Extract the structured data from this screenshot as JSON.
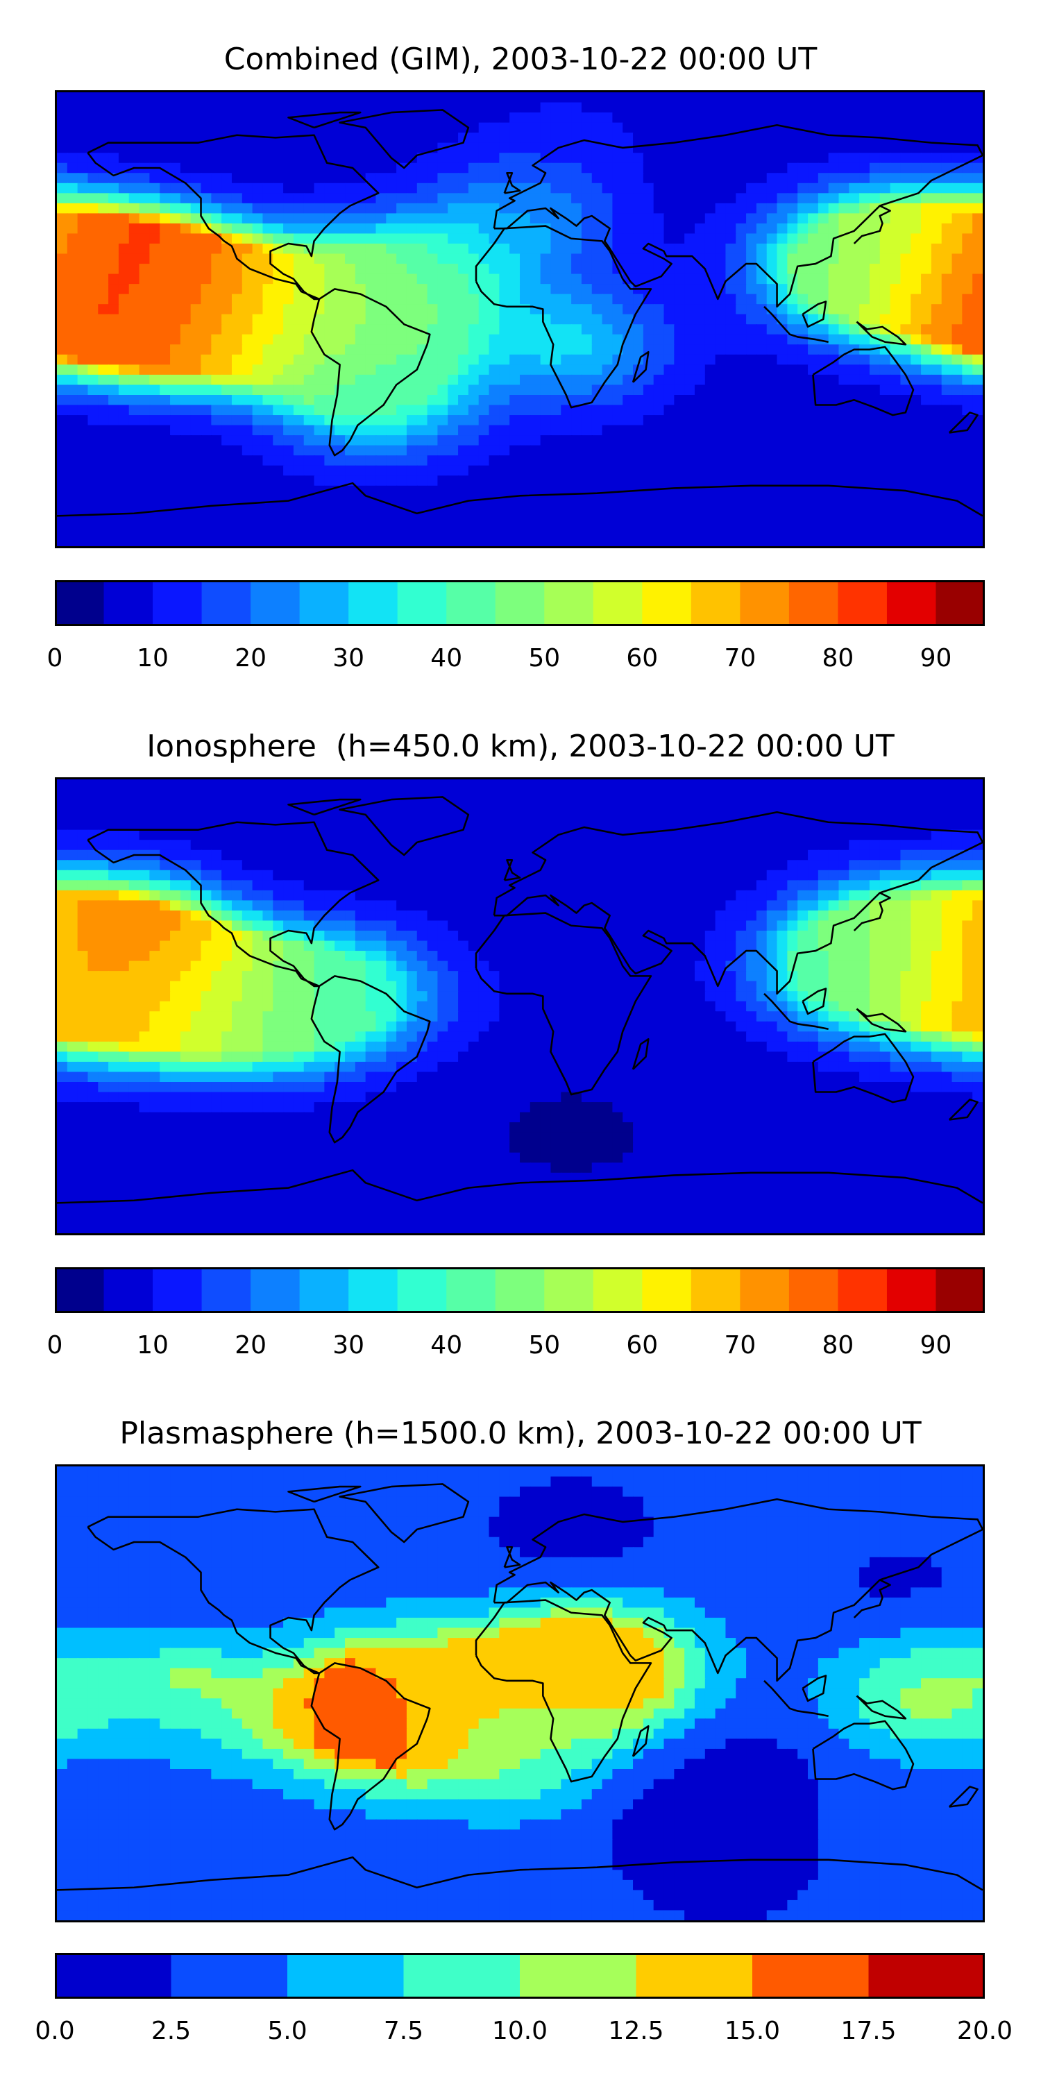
{
  "chart_data": [
    {
      "type": "heatmap",
      "title": "Combined (GIM), 2003-10-22 00:00 UT",
      "colorbar": {
        "levels": [
          0,
          5,
          10,
          15,
          20,
          25,
          30,
          35,
          40,
          45,
          50,
          55,
          60,
          65,
          70,
          75,
          80,
          85,
          90,
          95
        ],
        "ticks": [
          "0",
          "10",
          "20",
          "30",
          "40",
          "50",
          "60",
          "70",
          "80",
          "90"
        ],
        "colors": [
          "#00008d",
          "#0000d6",
          "#0a17ff",
          "#0f4dff",
          "#0d80ff",
          "#0ab1ff",
          "#12e3f5",
          "#32ffd1",
          "#56ffa7",
          "#7dff7d",
          "#a7ff56",
          "#d1ff2c",
          "#fff200",
          "#ffc200",
          "#ff9200",
          "#ff6600",
          "#ff3300",
          "#e30000",
          "#990000"
        ]
      },
      "features": [
        {
          "lon": -165,
          "lat": 15,
          "value": 88
        },
        {
          "lon": -140,
          "lat": 7,
          "value": 82
        },
        {
          "lon": -155,
          "lat": 10,
          "value": 80
        },
        {
          "lon": -120,
          "lat": 5,
          "value": 72
        },
        {
          "lon": -95,
          "lat": 0,
          "value": 58
        },
        {
          "lon": -65,
          "lat": -5,
          "value": 50
        },
        {
          "lon": -45,
          "lat": 15,
          "value": 45
        },
        {
          "lon": -55,
          "lat": -30,
          "value": 38
        },
        {
          "lon": 175,
          "lat": 15,
          "value": 78
        },
        {
          "lon": 150,
          "lat": 25,
          "value": 55
        },
        {
          "lon": 130,
          "lat": 20,
          "value": 42
        },
        {
          "lon": 20,
          "lat": -10,
          "value": 30
        },
        {
          "lon": 0,
          "lat": 40,
          "value": 25
        },
        {
          "lon": 20,
          "lat": 75,
          "value": 10
        },
        {
          "lon": 30,
          "lat": -75,
          "value": 8
        }
      ]
    },
    {
      "type": "heatmap",
      "title": "Ionosphere  (h=450.0 km), 2003-10-22 00:00 UT",
      "colorbar": {
        "levels": [
          0,
          5,
          10,
          15,
          20,
          25,
          30,
          35,
          40,
          45,
          50,
          55,
          60,
          65,
          70,
          75,
          80,
          85,
          90,
          95
        ],
        "ticks": [
          "0",
          "10",
          "20",
          "30",
          "40",
          "50",
          "60",
          "70",
          "80",
          "90"
        ],
        "colors": [
          "#00008d",
          "#0000d6",
          "#0a17ff",
          "#0f4dff",
          "#0d80ff",
          "#0ab1ff",
          "#12e3f5",
          "#32ffd1",
          "#56ffa7",
          "#7dff7d",
          "#a7ff56",
          "#d1ff2c",
          "#fff200",
          "#ffc200",
          "#ff9200",
          "#ff6600",
          "#ff3300",
          "#e30000",
          "#990000"
        ]
      },
      "features": [
        {
          "lon": -160,
          "lat": 25,
          "value": 80
        },
        {
          "lon": -150,
          "lat": 10,
          "value": 70
        },
        {
          "lon": -130,
          "lat": 5,
          "value": 62
        },
        {
          "lon": -100,
          "lat": 0,
          "value": 48
        },
        {
          "lon": -70,
          "lat": 5,
          "value": 38
        },
        {
          "lon": 175,
          "lat": 10,
          "value": 72
        },
        {
          "lon": 150,
          "lat": 25,
          "value": 52
        },
        {
          "lon": 130,
          "lat": 15,
          "value": 38
        },
        {
          "lon": 10,
          "lat": 0,
          "value": 8
        },
        {
          "lon": 30,
          "lat": 60,
          "value": 5
        },
        {
          "lon": 20,
          "lat": -50,
          "value": 4
        }
      ]
    },
    {
      "type": "heatmap",
      "title": "Plasmasphere (h=1500.0 km), 2003-10-22 00:00 UT",
      "colorbar": {
        "levels": [
          0.0,
          2.5,
          5.0,
          7.5,
          10.0,
          12.5,
          15.0,
          17.5,
          20.0
        ],
        "ticks": [
          "0.0",
          "2.5",
          "5.0",
          "7.5",
          "10.0",
          "12.5",
          "15.0",
          "17.5",
          "20.0"
        ],
        "colors": [
          "#0000cd",
          "#0a4dff",
          "#00bfff",
          "#3fffc8",
          "#a6ff5a",
          "#ffcc00",
          "#ff5a00",
          "#c00000"
        ]
      },
      "features": [
        {
          "lon": -55,
          "lat": -10,
          "value": 18.5
        },
        {
          "lon": 30,
          "lat": 10,
          "value": 16
        },
        {
          "lon": -45,
          "lat": 0,
          "value": 13
        },
        {
          "lon": 10,
          "lat": 5,
          "value": 12
        },
        {
          "lon": -130,
          "lat": -5,
          "value": 12
        },
        {
          "lon": 160,
          "lat": 0,
          "value": 11
        },
        {
          "lon": 0,
          "lat": -25,
          "value": 9
        },
        {
          "lon": -140,
          "lat": -25,
          "value": 2
        },
        {
          "lon": 90,
          "lat": -30,
          "value": 2
        },
        {
          "lon": 60,
          "lat": -45,
          "value": 1.5
        },
        {
          "lon": 80,
          "lat": -70,
          "value": 1.5
        },
        {
          "lon": 20,
          "lat": 65,
          "value": 1.5
        },
        {
          "lon": 150,
          "lat": 40,
          "value": 2
        }
      ]
    }
  ]
}
